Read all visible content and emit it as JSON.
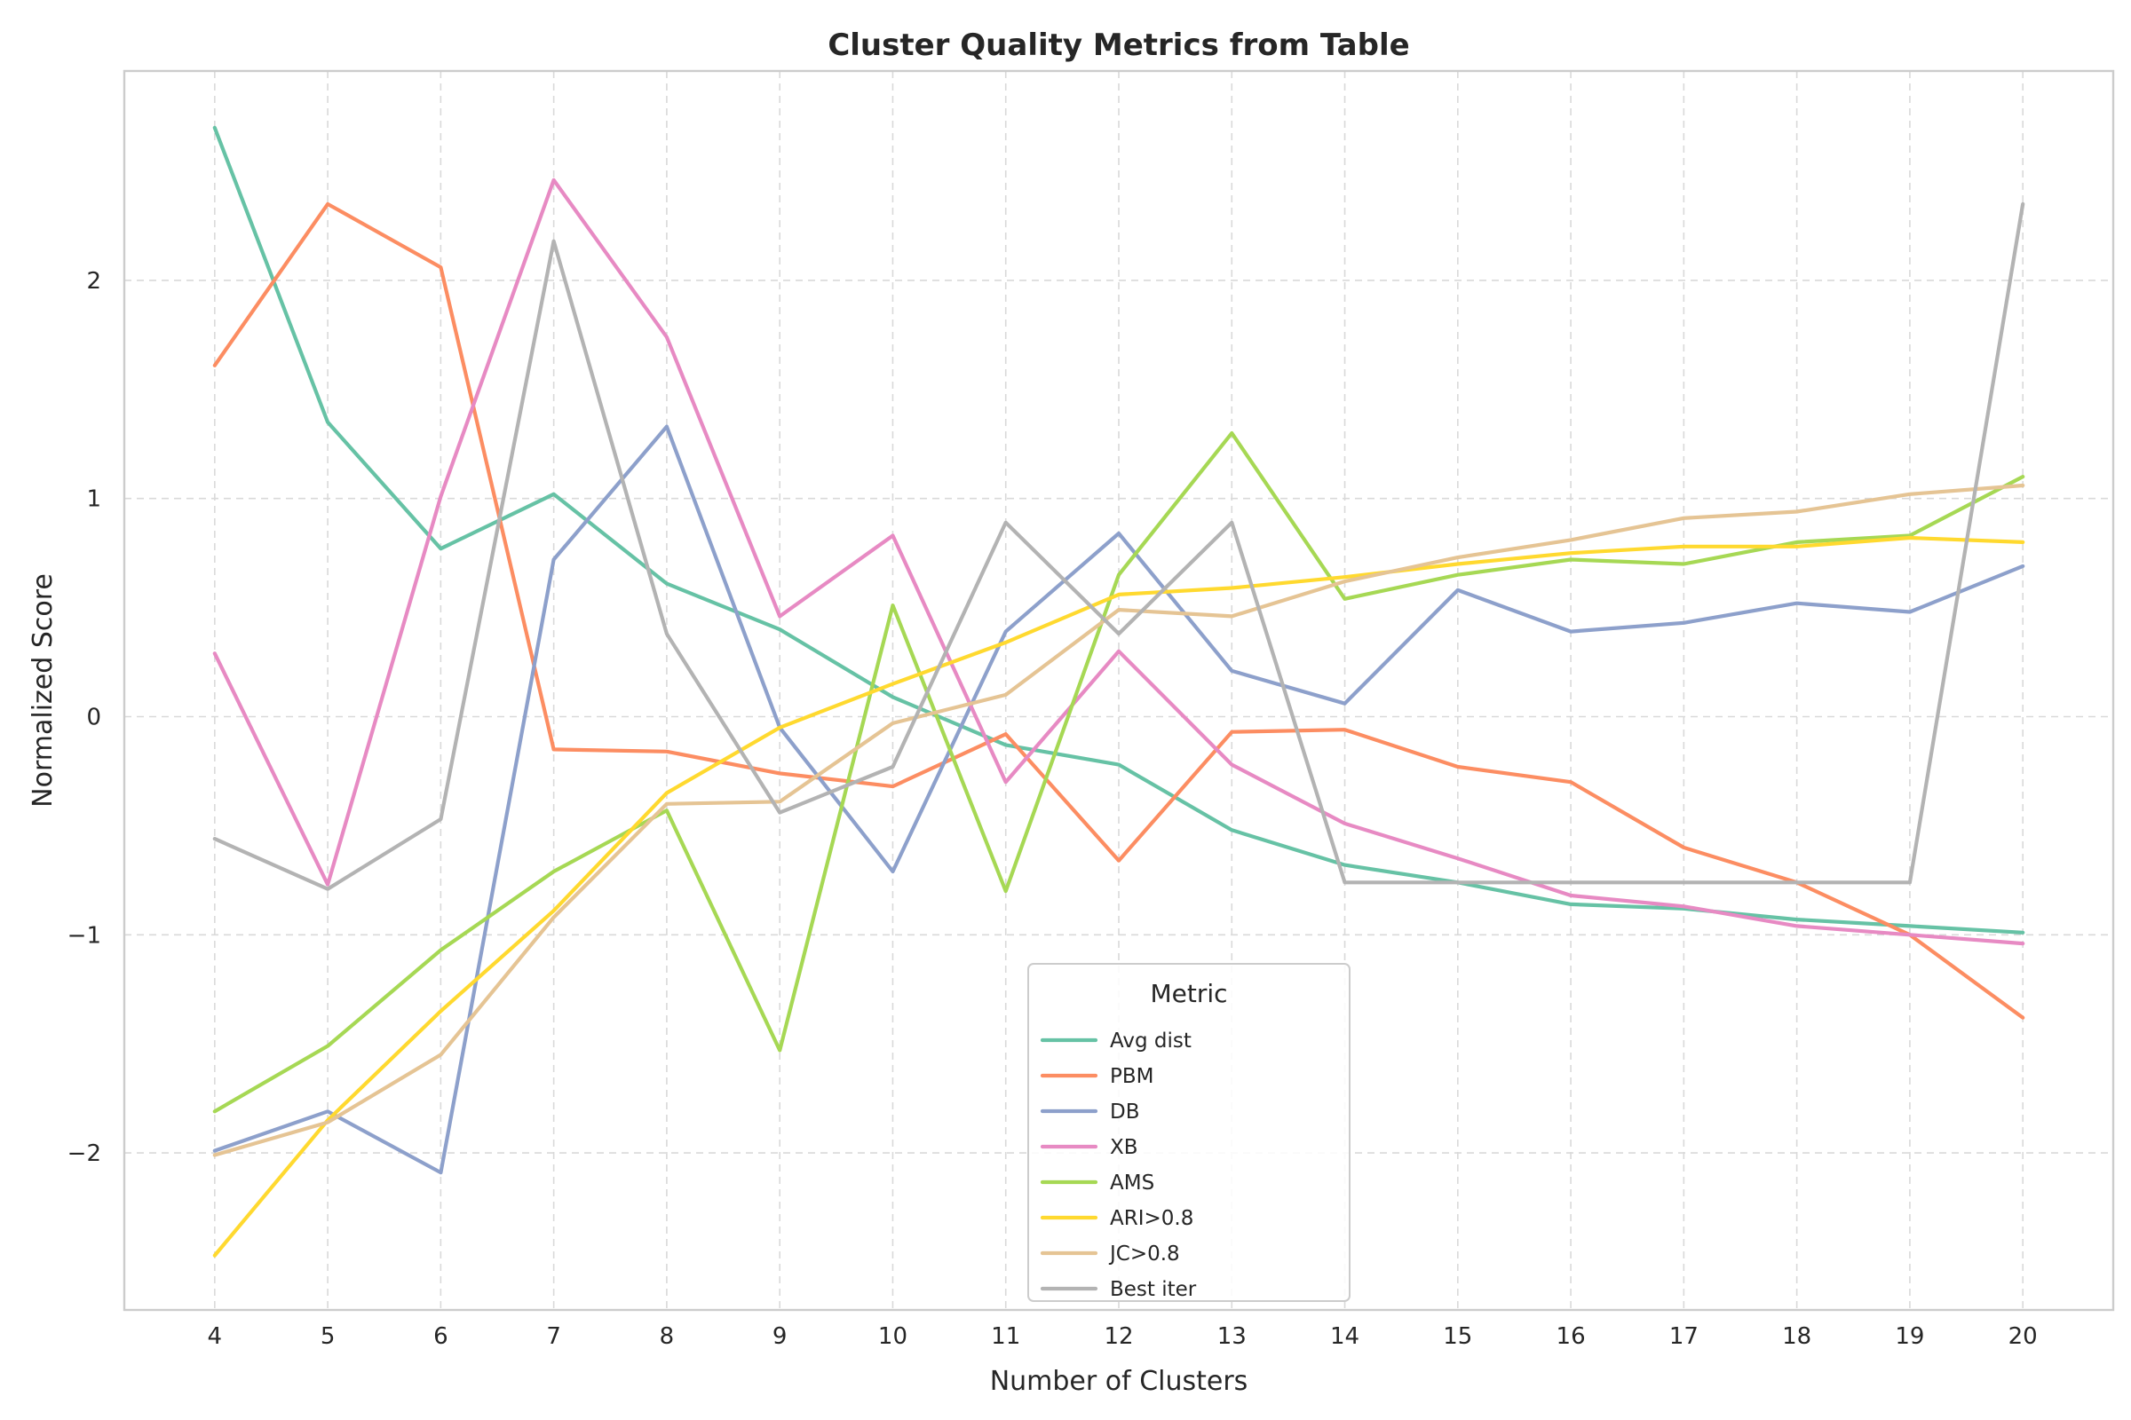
{
  "chart_data": {
    "type": "line",
    "title": "Cluster Quality Metrics from Table",
    "xlabel": "Number of Clusters",
    "ylabel": "Normalized Score",
    "x": [
      4,
      5,
      6,
      7,
      8,
      9,
      10,
      11,
      12,
      13,
      14,
      15,
      16,
      17,
      18,
      19,
      20
    ],
    "xlim": [
      3.2,
      20.8
    ],
    "ylim": [
      -2.72,
      2.96
    ],
    "yticks": [
      -2,
      -1,
      0,
      1,
      2
    ],
    "ytick_labels": [
      "−2",
      "−1",
      "0",
      "1",
      "2"
    ],
    "grid": true,
    "legend": {
      "title": "Metric",
      "placement": "lower-center"
    },
    "series": [
      {
        "name": "Avg dist",
        "color": "#66c2a5",
        "values": [
          2.7,
          1.35,
          0.77,
          1.02,
          0.61,
          0.4,
          0.09,
          -0.13,
          -0.22,
          -0.52,
          -0.68,
          -0.76,
          -0.86,
          -0.88,
          -0.93,
          -0.96,
          -0.99
        ]
      },
      {
        "name": "PBM",
        "color": "#fc8d62",
        "values": [
          1.61,
          2.35,
          2.06,
          -0.15,
          -0.16,
          -0.26,
          -0.32,
          -0.08,
          -0.66,
          -0.07,
          -0.06,
          -0.23,
          -0.3,
          -0.6,
          -0.76,
          -1.0,
          -1.38
        ]
      },
      {
        "name": "DB",
        "color": "#8da0cb",
        "values": [
          -1.99,
          -1.81,
          -2.09,
          0.72,
          1.33,
          -0.05,
          -0.71,
          0.39,
          0.84,
          0.21,
          0.06,
          0.58,
          0.39,
          0.43,
          0.52,
          0.48,
          0.69
        ]
      },
      {
        "name": "XB",
        "color": "#e78ac3",
        "values": [
          0.29,
          -0.77,
          1.01,
          2.46,
          1.74,
          0.46,
          0.83,
          -0.3,
          0.3,
          -0.22,
          -0.49,
          -0.65,
          -0.82,
          -0.87,
          -0.96,
          -1.0,
          -1.04
        ]
      },
      {
        "name": "AMS",
        "color": "#a6d854",
        "values": [
          -1.81,
          -1.51,
          -1.07,
          -0.71,
          -0.43,
          -1.53,
          0.51,
          -0.8,
          0.65,
          1.3,
          0.54,
          0.65,
          0.72,
          0.7,
          0.8,
          0.83,
          1.1
        ]
      },
      {
        "name": "ARI>0.8",
        "color": "#ffd92f",
        "values": [
          -2.47,
          -1.85,
          -1.35,
          -0.89,
          -0.35,
          -0.05,
          0.15,
          0.34,
          0.56,
          0.59,
          0.64,
          0.7,
          0.75,
          0.78,
          0.78,
          0.82,
          0.8
        ]
      },
      {
        "name": "JC>0.8",
        "color": "#e5c494",
        "values": [
          -2.01,
          -1.86,
          -1.55,
          -0.92,
          -0.4,
          -0.39,
          -0.03,
          0.1,
          0.49,
          0.46,
          0.62,
          0.73,
          0.81,
          0.91,
          0.94,
          1.02,
          1.06
        ]
      },
      {
        "name": "Best iter",
        "color": "#b3b3b3",
        "values": [
          -0.56,
          -0.79,
          -0.47,
          2.18,
          0.38,
          -0.44,
          -0.23,
          0.89,
          0.38,
          0.89,
          -0.76,
          -0.76,
          -0.76,
          -0.76,
          -0.76,
          -0.76,
          2.35
        ]
      }
    ]
  }
}
